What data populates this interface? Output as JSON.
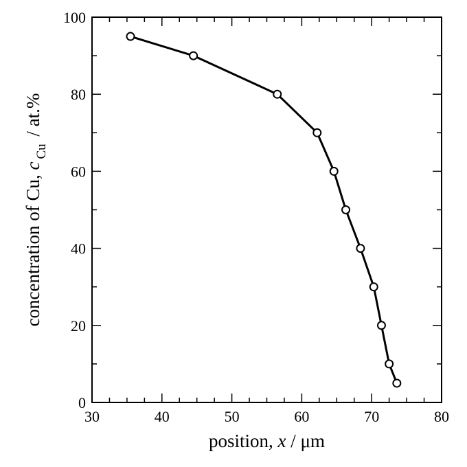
{
  "chart_data": {
    "type": "line",
    "xlabel": {
      "pre": "position, ",
      "var": "x",
      "post": " / μm"
    },
    "ylabel": {
      "pre": "concentration of Cu, ",
      "var": "c",
      "sub": "Cu",
      "post": " / at.%"
    },
    "xlim": [
      30,
      80
    ],
    "ylim": [
      0,
      100
    ],
    "x_ticks": [
      30,
      40,
      50,
      60,
      70,
      80
    ],
    "y_ticks": [
      0,
      20,
      40,
      60,
      80,
      100
    ],
    "x_minor_step": 2.5,
    "y_minor_step": 10,
    "grid": false,
    "marker": "open-circle",
    "series": [
      {
        "x": [
          35.5,
          44.5,
          56.5,
          62.2,
          64.6,
          66.3,
          68.4,
          70.3,
          71.4,
          72.5,
          73.6
        ],
        "y": [
          95,
          90,
          80,
          70,
          60,
          50,
          40,
          30,
          20,
          10,
          5
        ]
      }
    ]
  }
}
